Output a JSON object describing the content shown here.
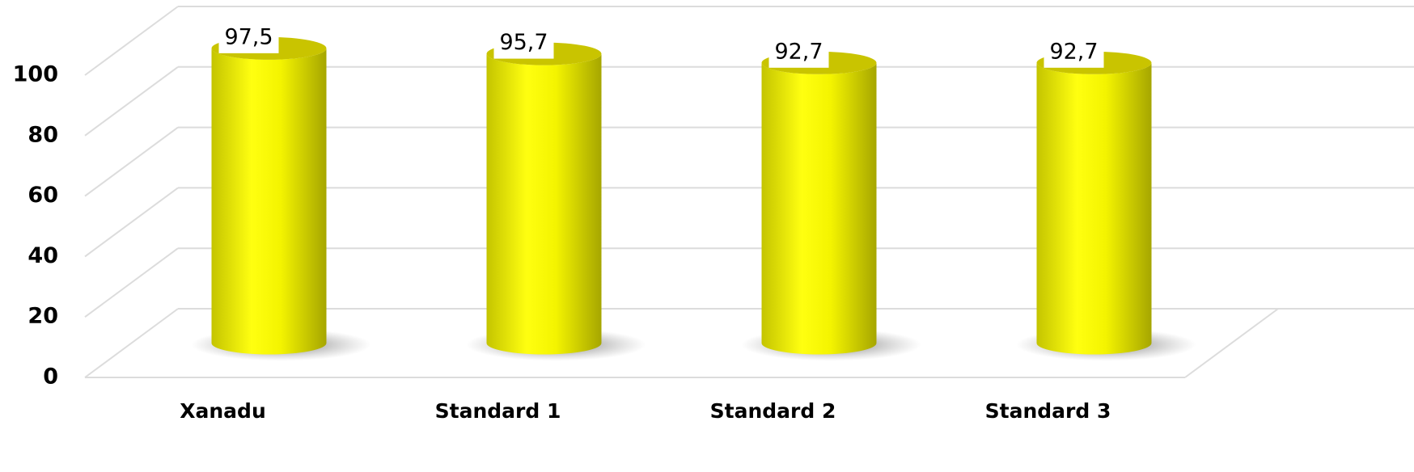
{
  "chart_data": {
    "type": "bar",
    "categories": [
      "Xanadu",
      "Standard 1",
      "Standard 2",
      "Standard 3"
    ],
    "values": [
      97.5,
      95.7,
      92.7,
      92.7
    ],
    "value_labels": [
      "97,5",
      "95,7",
      "92,7",
      "92,7"
    ],
    "color": "#ffff00",
    "ylim": [
      0,
      100
    ],
    "yticks": [
      0,
      20,
      40,
      60,
      80,
      100
    ],
    "grid": true
  }
}
